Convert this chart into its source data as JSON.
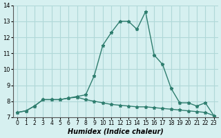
{
  "xlabel": "Humidex (Indice chaleur)",
  "x": [
    0,
    1,
    2,
    3,
    4,
    5,
    6,
    7,
    8,
    9,
    10,
    11,
    12,
    13,
    14,
    15,
    16,
    17,
    18,
    19,
    20,
    21,
    22,
    23
  ],
  "line1": [
    7.3,
    7.4,
    7.7,
    8.1,
    8.1,
    8.1,
    8.2,
    8.3,
    8.4,
    9.6,
    11.5,
    12.3,
    13.0,
    13.0,
    12.5,
    13.6,
    10.9,
    10.3,
    8.8,
    7.9,
    7.9,
    7.7,
    7.9,
    7.1
  ],
  "line2": [
    7.3,
    7.4,
    7.7,
    8.1,
    8.1,
    8.1,
    8.2,
    8.25,
    8.1,
    8.0,
    7.9,
    7.8,
    7.75,
    7.7,
    7.65,
    7.65,
    7.6,
    7.55,
    7.5,
    7.45,
    7.4,
    7.35,
    7.3,
    7.1
  ],
  "ylim": [
    7,
    14
  ],
  "xlim": [
    0,
    23
  ],
  "line_color": "#2e7d6e",
  "bg_color": "#d6f0f0",
  "grid_color": "#b0d8d8",
  "yticks": [
    7,
    8,
    9,
    10,
    11,
    12,
    13,
    14
  ],
  "xtick_labels": [
    "0",
    "1",
    "2",
    "3",
    "4",
    "5",
    "6",
    "7",
    "8",
    "9",
    "10",
    "11",
    "12",
    "13",
    "14",
    "15",
    "16",
    "17",
    "18",
    "19",
    "20",
    "21",
    "22",
    "23"
  ]
}
